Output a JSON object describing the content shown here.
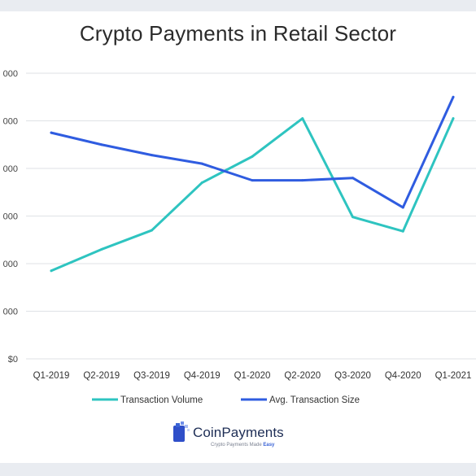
{
  "chart_data": {
    "type": "line",
    "title": "Crypto Payments in Retail Sector",
    "categories": [
      "Q1-2019",
      "Q2-2019",
      "Q3-2019",
      "Q4-2019",
      "Q1-2020",
      "Q2-2020",
      "Q3-2020",
      "Q4-2020",
      "Q1-2021"
    ],
    "y_tick_labels": [
      "$0",
      "000",
      "000",
      "000",
      "000",
      "000",
      "000"
    ],
    "y_tick_values": [
      0,
      1,
      2,
      3,
      4,
      5,
      6
    ],
    "ylim": [
      0,
      6
    ],
    "grid": true,
    "legend_position": "bottom",
    "series": [
      {
        "name": "Transaction Volume",
        "color": "#2ec4c0",
        "values": [
          1.85,
          2.3,
          2.7,
          3.7,
          4.25,
          5.05,
          2.98,
          2.68,
          5.05
        ]
      },
      {
        "name": "Avg. Transaction Size",
        "color": "#2f5ce0",
        "values": [
          4.75,
          4.5,
          4.28,
          4.1,
          3.75,
          3.75,
          3.8,
          3.18,
          5.5
        ]
      }
    ]
  },
  "logo": {
    "name": "CoinPayments",
    "tagline_prefix": "Crypto Payments Made ",
    "tagline_accent": "Easy"
  }
}
